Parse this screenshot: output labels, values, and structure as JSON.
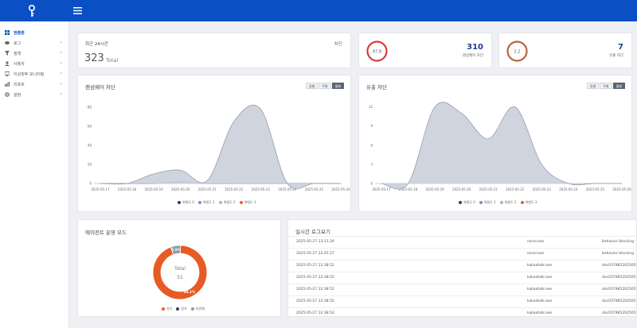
{
  "sidebar": {
    "items": [
      {
        "label": "현황판",
        "icon": "dashboard-icon",
        "active": true,
        "chevron": false
      },
      {
        "label": "로그",
        "icon": "log-icon",
        "active": false,
        "chevron": true
      },
      {
        "label": "정책",
        "icon": "filter-icon",
        "active": false,
        "chevron": true
      },
      {
        "label": "사용자",
        "icon": "user-icon",
        "active": false,
        "chevron": true
      },
      {
        "label": "이상징후 모니터링",
        "icon": "monitor-icon",
        "active": false,
        "chevron": true
      },
      {
        "label": "리포트",
        "icon": "chart-icon",
        "active": false,
        "chevron": true
      },
      {
        "label": "설정",
        "icon": "gear-icon",
        "active": false,
        "chevron": true
      }
    ]
  },
  "summary": {
    "title": "최근 24시간",
    "right_label": "차단",
    "count": "323",
    "count_unit": "Total"
  },
  "stat_ransomware": {
    "gauge_value": "97.8",
    "count": "310",
    "label": "랜섬웨어 차단",
    "color": "#d63b3b"
  },
  "stat_leak": {
    "gauge_value": "2.2",
    "count": "7",
    "label": "유출 차단",
    "color": "#b5663b"
  },
  "range_buttons": [
    "일별",
    "주별",
    "월별"
  ],
  "selected_range": "월별",
  "chart_data": [
    {
      "type": "area",
      "title": "랜섬웨어 차단",
      "x": [
        "2025-05-17",
        "2025-05-18",
        "2025-05-19",
        "2025-05-20",
        "2025-05-21",
        "2025-05-22",
        "2025-05-23",
        "2025-05-24",
        "2025-05-25",
        "2025-05-26"
      ],
      "yticks": [
        0,
        20,
        40,
        60,
        80
      ],
      "ylim": [
        0,
        85
      ],
      "series": [
        {
          "name": "위험도 0",
          "color": "#2c3e7a",
          "values": [
            0,
            0,
            0,
            0,
            0,
            0,
            0,
            0,
            0,
            0
          ]
        },
        {
          "name": "위험도 1",
          "color": "#7a8fcf",
          "values": [
            0,
            0,
            0,
            2,
            0,
            0,
            0,
            0,
            0,
            0
          ]
        },
        {
          "name": "위험도 2",
          "color": "#b0b4ba",
          "values": [
            0,
            0,
            10,
            14,
            3,
            65,
            78,
            0,
            0,
            0
          ]
        },
        {
          "name": "위험도 3",
          "color": "#e8622a",
          "values": [
            0,
            0,
            0,
            0,
            0,
            0,
            0,
            0,
            0,
            0
          ]
        }
      ]
    },
    {
      "type": "area",
      "title": "유출 차단",
      "x": [
        "2025-05-17",
        "2025-05-18",
        "2025-05-19",
        "2025-05-20",
        "2025-05-21",
        "2025-05-22",
        "2025-05-23",
        "2025-05-24",
        "2025-05-25",
        "2025-05-26"
      ],
      "yticks": [
        0,
        3,
        6,
        9,
        12
      ],
      "ylim": [
        0,
        12.7
      ],
      "series": [
        {
          "name": "위험도 0",
          "color": "#2c3e7a",
          "values": [
            0,
            0,
            0,
            0,
            0,
            0,
            0,
            0,
            0,
            0
          ]
        },
        {
          "name": "위험도 1",
          "color": "#7a8fcf",
          "values": [
            0,
            0,
            0,
            0,
            0,
            0,
            0,
            0,
            0,
            0
          ]
        },
        {
          "name": "위험도 2",
          "color": "#b0b4ba",
          "values": [
            0,
            0,
            12,
            11,
            7,
            12,
            3,
            0,
            0,
            0
          ]
        },
        {
          "name": "위험도 3",
          "color": "#e8622a",
          "values": [
            0,
            0,
            0,
            0,
            0,
            0,
            0,
            0,
            0,
            0
          ]
        }
      ]
    },
    {
      "type": "pie",
      "title": "에이전트 운영 모드",
      "center_label": "Total",
      "center_value": "51",
      "slices": [
        {
          "name": "차단",
          "value": 94.1,
          "label": "94.1%",
          "color": "#e85a25"
        },
        {
          "name": "탐지",
          "value": 0,
          "label": "",
          "color": "#2c3e7a"
        },
        {
          "name": "미관제",
          "value": 5.9,
          "label": "5.9%",
          "color": "#8d9aa8"
        }
      ]
    }
  ],
  "log": {
    "title": "실시간 로그보기",
    "rows": [
      {
        "time": "2025-05-27 13:11:24",
        "process": "excel.exe",
        "detail": "behavior blocking"
      },
      {
        "time": "2025-05-27 12:45:27",
        "process": "excel.exe",
        "detail": "behavior blocking"
      },
      {
        "time": "2025-05-27 12:38:52",
        "process": "kakaotalk.exe",
        "detail": "doc0379852025052"
      },
      {
        "time": "2025-05-27 12:38:52",
        "process": "kakaotalk.exe",
        "detail": "doc0379852025052"
      },
      {
        "time": "2025-05-27 12:38:52",
        "process": "kakaotalk.exe",
        "detail": "doc0379852025052"
      },
      {
        "time": "2025-05-27 12:38:52",
        "process": "kakaotalk.exe",
        "detail": "doc0379852025052"
      },
      {
        "time": "2025-05-27 12:38:52",
        "process": "kakaotalk.exe",
        "detail": "doc0379852025052"
      }
    ]
  }
}
